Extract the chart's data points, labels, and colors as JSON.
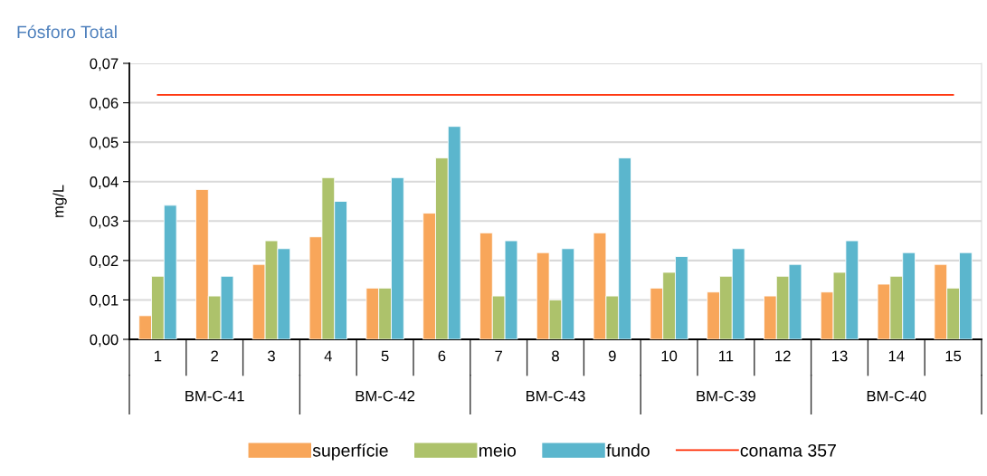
{
  "chart_data": {
    "type": "bar",
    "title": "Fósforo Total",
    "ylabel": "mg/L",
    "categories": [
      "1",
      "2",
      "3",
      "4",
      "5",
      "6",
      "7",
      "8",
      "9",
      "10",
      "11",
      "12",
      "13",
      "14",
      "15"
    ],
    "series": [
      {
        "name": "superfície",
        "color": "#f8a65a",
        "values": [
          0.006,
          0.038,
          0.019,
          0.026,
          0.013,
          0.032,
          0.027,
          0.022,
          0.027,
          0.013,
          0.012,
          0.011,
          0.012,
          0.014,
          0.019
        ]
      },
      {
        "name": "meio",
        "color": "#adc26b",
        "values": [
          0.016,
          0.011,
          0.025,
          0.041,
          0.013,
          0.046,
          0.011,
          0.01,
          0.011,
          0.017,
          0.016,
          0.016,
          0.017,
          0.016,
          0.013
        ]
      },
      {
        "name": "fundo",
        "color": "#5bb6cd",
        "values": [
          0.034,
          0.016,
          0.023,
          0.035,
          0.041,
          0.054,
          0.025,
          0.023,
          0.046,
          0.021,
          0.023,
          0.019,
          0.025,
          0.022,
          0.022
        ]
      },
      {
        "name": "conama 357",
        "type": "line",
        "color": "#ff2a00",
        "values": [
          0.062,
          0.062,
          0.062,
          0.062,
          0.062,
          0.062,
          0.062,
          0.062,
          0.062,
          0.062,
          0.062,
          0.062,
          0.062,
          0.062,
          0.062
        ]
      }
    ],
    "ylim": [
      0,
      0.07
    ],
    "yticks": [
      {
        "value": 0,
        "label": "0,00"
      },
      {
        "value": 0.01,
        "label": "0,01"
      },
      {
        "value": 0.02,
        "label": "0,02"
      },
      {
        "value": 0.03,
        "label": "0,03"
      },
      {
        "value": 0.04,
        "label": "0,04"
      },
      {
        "value": 0.05,
        "label": "0,05"
      },
      {
        "value": 0.06,
        "label": "0,06"
      },
      {
        "value": 0.07,
        "label": "0,07"
      }
    ],
    "annotations": [
      "BM-C-41",
      "BM-C-42",
      "BM-C-43",
      "BM-C-39",
      "BM-C-40"
    ],
    "grid": "y",
    "legend": "bottom"
  }
}
